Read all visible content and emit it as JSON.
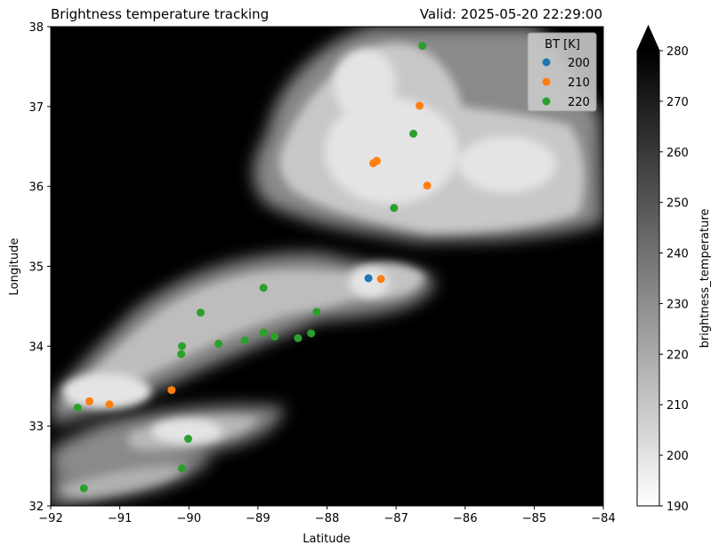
{
  "chart_data": {
    "type": "scatter",
    "title_left": "Brightness temperature tracking",
    "title_right": "Valid: 2025-05-20 22:29:00",
    "xlabel": "Latitude",
    "ylabel": "Longitude",
    "xlim": [
      -92,
      -84
    ],
    "ylim": [
      32,
      38
    ],
    "x_ticks": [
      -92,
      -91,
      -90,
      -89,
      -88,
      -87,
      -86,
      -85,
      -84
    ],
    "y_ticks": [
      32,
      33,
      34,
      35,
      36,
      37,
      38
    ],
    "background": "grayscale brightness temperature field (cloud shield)",
    "legend": {
      "title": "BT [K]",
      "placement": "upper right"
    },
    "series": [
      {
        "name": "200",
        "color": "#1f77b4",
        "points": [
          [
            -87.4,
            34.85
          ]
        ]
      },
      {
        "name": "210",
        "color": "#ff7f0e",
        "points": [
          [
            -87.22,
            34.84
          ],
          [
            -87.33,
            36.29
          ],
          [
            -87.28,
            36.32
          ],
          [
            -86.66,
            37.01
          ],
          [
            -86.55,
            36.01
          ],
          [
            -90.25,
            33.45
          ],
          [
            -91.44,
            33.31
          ],
          [
            -91.15,
            33.27
          ]
        ]
      },
      {
        "name": "220",
        "color": "#2ca02c",
        "points": [
          [
            -86.62,
            37.76
          ],
          [
            -86.75,
            36.66
          ],
          [
            -87.03,
            35.73
          ],
          [
            -88.92,
            34.73
          ],
          [
            -89.83,
            34.42
          ],
          [
            -88.15,
            34.43
          ],
          [
            -90.1,
            34.0
          ],
          [
            -89.57,
            34.03
          ],
          [
            -89.19,
            34.07
          ],
          [
            -88.92,
            34.17
          ],
          [
            -88.76,
            34.12
          ],
          [
            -88.42,
            34.1
          ],
          [
            -88.23,
            34.16
          ],
          [
            -90.11,
            33.9
          ],
          [
            -91.61,
            33.23
          ],
          [
            -90.01,
            32.84
          ],
          [
            -90.1,
            32.47
          ],
          [
            -91.52,
            32.22
          ]
        ]
      }
    ],
    "colorbar": {
      "label": "brightness_temperature",
      "range": [
        190,
        280
      ],
      "ticks": [
        190,
        200,
        210,
        220,
        230,
        240,
        250,
        260,
        270,
        280
      ],
      "extend": "max",
      "colormap": "gray (white at low BT, black at high BT)"
    }
  }
}
